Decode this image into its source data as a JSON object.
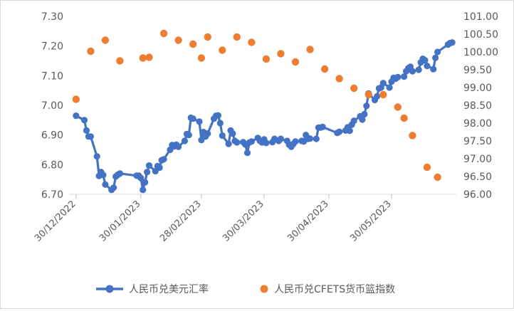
{
  "chart_data": {
    "type": "line+scatter",
    "title": "",
    "x_ticks": [
      "30/12/2022",
      "30/01/2023",
      "28/02/2023",
      "30/03/2023",
      "30/04/2023",
      "30/05/2023"
    ],
    "y_left": {
      "range": [
        6.7,
        7.3
      ],
      "ticks": [
        "6.70",
        "6.80",
        "6.90",
        "7.00",
        "7.10",
        "7.20",
        "7.30"
      ]
    },
    "y_right": {
      "range": [
        96.0,
        101.0
      ],
      "ticks": [
        "96.00",
        "96.50",
        "97.00",
        "97.50",
        "98.00",
        "98.50",
        "99.00",
        "99.50",
        "100.00",
        "100.50",
        "101.00"
      ]
    },
    "grid": false,
    "legend_position": "bottom",
    "series": [
      {
        "name": "人民币兑美元汇率",
        "axis": "left",
        "style": "line-markers",
        "color": "#4472C4",
        "points": [
          [
            "2022-12-30",
            6.965
          ],
          [
            "2023-01-03",
            6.95
          ],
          [
            "2023-01-04",
            6.915
          ],
          [
            "2023-01-05",
            6.895
          ],
          [
            "2023-01-06",
            6.895
          ],
          [
            "2023-01-09",
            6.828
          ],
          [
            "2023-01-10",
            6.762
          ],
          [
            "2023-01-11",
            6.775
          ],
          [
            "2023-01-12",
            6.765
          ],
          [
            "2023-01-13",
            6.733
          ],
          [
            "2023-01-16",
            6.715
          ],
          [
            "2023-01-17",
            6.722
          ],
          [
            "2023-01-18",
            6.76
          ],
          [
            "2023-01-19",
            6.766
          ],
          [
            "2023-01-20",
            6.77
          ],
          [
            "2023-01-28",
            6.763
          ],
          [
            "2023-01-29",
            6.763
          ],
          [
            "2023-01-30",
            6.755
          ],
          [
            "2023-01-31",
            6.715
          ],
          [
            "2023-02-01",
            6.74
          ],
          [
            "2023-02-02",
            6.775
          ],
          [
            "2023-02-03",
            6.797
          ],
          [
            "2023-02-06",
            6.778
          ],
          [
            "2023-02-07",
            6.795
          ],
          [
            "2023-02-08",
            6.79
          ],
          [
            "2023-02-09",
            6.815
          ],
          [
            "2023-02-10",
            6.818
          ],
          [
            "2023-02-13",
            6.85
          ],
          [
            "2023-02-14",
            6.866
          ],
          [
            "2023-02-15",
            6.862
          ],
          [
            "2023-02-16",
            6.867
          ],
          [
            "2023-02-17",
            6.86
          ],
          [
            "2023-02-20",
            6.88
          ],
          [
            "2023-02-21",
            6.903
          ],
          [
            "2023-02-22",
            6.9
          ],
          [
            "2023-02-23",
            6.958
          ],
          [
            "2023-02-24",
            6.955
          ],
          [
            "2023-02-27",
            6.945
          ],
          [
            "2023-02-28",
            6.883
          ],
          [
            "2023-03-01",
            6.91
          ],
          [
            "2023-03-02",
            6.895
          ],
          [
            "2023-03-03",
            6.905
          ],
          [
            "2023-03-06",
            6.955
          ],
          [
            "2023-03-07",
            6.965
          ],
          [
            "2023-03-08",
            6.966
          ],
          [
            "2023-03-09",
            6.94
          ],
          [
            "2023-03-10",
            6.898
          ],
          [
            "2023-03-13",
            6.87
          ],
          [
            "2023-03-14",
            6.915
          ],
          [
            "2023-03-15",
            6.905
          ],
          [
            "2023-03-16",
            6.88
          ],
          [
            "2023-03-17",
            6.875
          ],
          [
            "2023-03-20",
            6.876
          ],
          [
            "2023-03-21",
            6.868
          ],
          [
            "2023-03-22",
            6.84
          ],
          [
            "2023-03-23",
            6.875
          ],
          [
            "2023-03-24",
            6.878
          ],
          [
            "2023-03-27",
            6.89
          ],
          [
            "2023-03-28",
            6.88
          ],
          [
            "2023-03-29",
            6.875
          ],
          [
            "2023-03-30",
            6.885
          ],
          [
            "2023-03-31",
            6.873
          ],
          [
            "2023-04-03",
            6.876
          ],
          [
            "2023-04-04",
            6.887
          ],
          [
            "2023-04-06",
            6.88
          ],
          [
            "2023-04-07",
            6.887
          ],
          [
            "2023-04-10",
            6.88
          ],
          [
            "2023-04-11",
            6.867
          ],
          [
            "2023-04-12",
            6.86
          ],
          [
            "2023-04-13",
            6.87
          ],
          [
            "2023-04-14",
            6.878
          ],
          [
            "2023-04-17",
            6.88
          ],
          [
            "2023-04-18",
            6.878
          ],
          [
            "2023-04-19",
            6.9
          ],
          [
            "2023-04-20",
            6.887
          ],
          [
            "2023-04-21",
            6.888
          ],
          [
            "2023-04-24",
            6.887
          ],
          [
            "2023-04-25",
            6.925
          ],
          [
            "2023-04-26",
            6.925
          ],
          [
            "2023-04-27",
            6.927
          ],
          [
            "2023-05-04",
            6.907
          ],
          [
            "2023-05-05",
            6.911
          ],
          [
            "2023-05-08",
            6.915
          ],
          [
            "2023-05-09",
            6.926
          ],
          [
            "2023-05-10",
            6.914
          ],
          [
            "2023-05-11",
            6.935
          ],
          [
            "2023-05-12",
            6.948
          ],
          [
            "2023-05-15",
            6.963
          ],
          [
            "2023-05-16",
            6.952
          ],
          [
            "2023-05-17",
            6.97
          ],
          [
            "2023-05-18",
            6.998
          ],
          [
            "2023-05-19",
            7.04
          ],
          [
            "2023-05-22",
            7.018
          ],
          [
            "2023-05-23",
            7.03
          ],
          [
            "2023-05-24",
            7.057
          ],
          [
            "2023-05-25",
            7.06
          ],
          [
            "2023-05-26",
            7.075
          ],
          [
            "2023-05-29",
            7.06
          ],
          [
            "2023-05-30",
            7.08
          ],
          [
            "2023-05-31",
            7.093
          ],
          [
            "2023-06-01",
            7.09
          ],
          [
            "2023-06-02",
            7.095
          ],
          [
            "2023-06-05",
            7.097
          ],
          [
            "2023-06-06",
            7.115
          ],
          [
            "2023-06-07",
            7.125
          ],
          [
            "2023-06-08",
            7.13
          ],
          [
            "2023-06-09",
            7.115
          ],
          [
            "2023-06-12",
            7.12
          ],
          [
            "2023-06-13",
            7.145
          ],
          [
            "2023-06-14",
            7.157
          ],
          [
            "2023-06-15",
            7.152
          ],
          [
            "2023-06-16",
            7.133
          ],
          [
            "2023-06-19",
            7.122
          ],
          [
            "2023-06-20",
            7.16
          ],
          [
            "2023-06-21",
            7.18
          ],
          [
            "2023-06-26",
            7.205
          ],
          [
            "2023-06-27",
            7.21
          ],
          [
            "2023-06-28",
            7.212
          ]
        ]
      },
      {
        "name": "人民币兑CFETS货币篮指数",
        "axis": "right",
        "style": "markers",
        "color": "#ED7D31",
        "points": [
          [
            "2022-12-30",
            98.67
          ],
          [
            "2023-01-06",
            100.02
          ],
          [
            "2023-01-13",
            100.33
          ],
          [
            "2023-01-20",
            99.75
          ],
          [
            "2023-01-31",
            99.83
          ],
          [
            "2023-02-03",
            99.85
          ],
          [
            "2023-02-10",
            100.52
          ],
          [
            "2023-02-17",
            100.33
          ],
          [
            "2023-02-24",
            100.22
          ],
          [
            "2023-02-28",
            99.83
          ],
          [
            "2023-03-03",
            100.42
          ],
          [
            "2023-03-10",
            100.05
          ],
          [
            "2023-03-17",
            100.42
          ],
          [
            "2023-03-24",
            100.27
          ],
          [
            "2023-03-31",
            99.8
          ],
          [
            "2023-04-07",
            99.95
          ],
          [
            "2023-04-14",
            99.72
          ],
          [
            "2023-04-21",
            100.07
          ],
          [
            "2023-04-28",
            99.52
          ],
          [
            "2023-05-05",
            99.25
          ],
          [
            "2023-05-12",
            98.98
          ],
          [
            "2023-05-19",
            98.8
          ],
          [
            "2023-05-26",
            98.8
          ],
          [
            "2023-06-02",
            98.45
          ],
          [
            "2023-06-05",
            98.14
          ],
          [
            "2023-06-09",
            97.65
          ],
          [
            "2023-06-16",
            96.76
          ],
          [
            "2023-06-21",
            96.48
          ]
        ]
      }
    ]
  }
}
